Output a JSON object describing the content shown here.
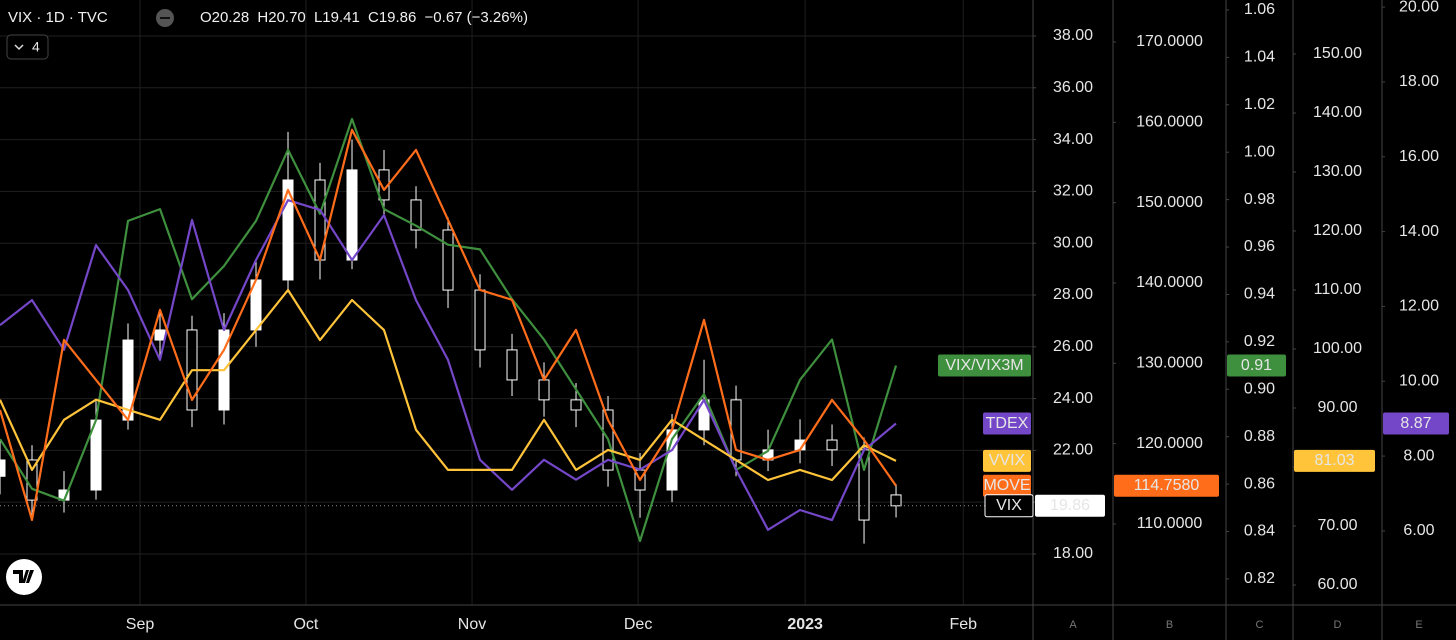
{
  "chart_data": {
    "type": "line",
    "title": "VIX · 1D · TVC",
    "ohlc": [
      "O20.28",
      "H20.70",
      "L19.41",
      "C19.86",
      "−0.67 (−3.26%)"
    ],
    "indicator_count": 4,
    "x": [
      0,
      1,
      2,
      3,
      4,
      5,
      6,
      7,
      8,
      9,
      10,
      11,
      12,
      13,
      14,
      15,
      16,
      17,
      18,
      19,
      20,
      21,
      22,
      23,
      24,
      25,
      26,
      27,
      28
    ],
    "xlim": [
      0,
      32.28
    ],
    "xticks": [
      {
        "value": 4.375,
        "label": "Sep"
      },
      {
        "value": 9.56,
        "label": "Oct"
      },
      {
        "value": 14.75,
        "label": "Nov"
      },
      {
        "value": 19.94,
        "label": "Dec"
      },
      {
        "value": 25.16,
        "label": "2023"
      },
      {
        "value": 30.1,
        "label": "Feb"
      }
    ],
    "grid": true,
    "axes": [
      {
        "id": "A",
        "lim": [
          16.03,
          39.39
        ],
        "ticks": [
          {
            "value": 18,
            "label": "18.00"
          },
          {
            "value": 20,
            "label": "20.00"
          },
          {
            "value": 22,
            "label": "22.00"
          },
          {
            "value": 24,
            "label": "24.00"
          },
          {
            "value": 26,
            "label": "26.00"
          },
          {
            "value": 28,
            "label": "28.00"
          },
          {
            "value": 30,
            "label": "30.00"
          },
          {
            "value": 32,
            "label": "32.00"
          },
          {
            "value": 34,
            "label": "34.00"
          },
          {
            "value": 36,
            "label": "36.00"
          },
          {
            "value": 38,
            "label": "38.00"
          }
        ]
      },
      {
        "id": "B",
        "lim": [
          99.91,
          175.23
        ],
        "ticks": [
          {
            "value": 110,
            "label": "110.0000"
          },
          {
            "value": 120,
            "label": "120.0000"
          },
          {
            "value": 130,
            "label": "130.0000"
          },
          {
            "value": 140,
            "label": "140.0000"
          },
          {
            "value": 150,
            "label": "150.0000"
          },
          {
            "value": 160,
            "label": "160.0000"
          },
          {
            "value": 170,
            "label": "170.0000"
          }
        ]
      },
      {
        "id": "C",
        "lim": [
          0.809,
          1.0642
        ],
        "ticks": [
          {
            "value": 0.82,
            "label": "0.82"
          },
          {
            "value": 0.84,
            "label": "0.84"
          },
          {
            "value": 0.86,
            "label": "0.86"
          },
          {
            "value": 0.88,
            "label": "0.88"
          },
          {
            "value": 0.9,
            "label": "0.90"
          },
          {
            "value": 0.92,
            "label": "0.92"
          },
          {
            "value": 0.94,
            "label": "0.94"
          },
          {
            "value": 0.96,
            "label": "0.96"
          },
          {
            "value": 0.98,
            "label": "0.98"
          },
          {
            "value": 1,
            "label": "1.00"
          },
          {
            "value": 1.02,
            "label": "1.02"
          },
          {
            "value": 1.04,
            "label": "1.04"
          },
          {
            "value": 1.06,
            "label": "1.06"
          }
        ]
      },
      {
        "id": "D",
        "lim": [
          56.61,
          159.15
        ],
        "ticks": [
          {
            "value": 60,
            "label": "60.00"
          },
          {
            "value": 70,
            "label": "70.00"
          },
          {
            "value": 80,
            "label": "80.00"
          },
          {
            "value": 90,
            "label": "90.00"
          },
          {
            "value": 100,
            "label": "100.00"
          },
          {
            "value": 110,
            "label": "110.00"
          },
          {
            "value": 120,
            "label": "120.00"
          },
          {
            "value": 130,
            "label": "130.00"
          },
          {
            "value": 140,
            "label": "140.00"
          },
          {
            "value": 150,
            "label": "150.00"
          }
        ]
      },
      {
        "id": "E",
        "lim": [
          4.02,
          20.19
        ],
        "ticks": [
          {
            "value": 6,
            "label": "6.00"
          },
          {
            "value": 8,
            "label": "8.00"
          },
          {
            "value": 10,
            "label": "10.00"
          },
          {
            "value": 12,
            "label": "12.00"
          },
          {
            "value": 14,
            "label": "14.00"
          },
          {
            "value": 16,
            "label": "16.00"
          },
          {
            "value": 18,
            "label": "18.00"
          },
          {
            "value": 20,
            "label": "20.00"
          }
        ]
      }
    ],
    "candles": {
      "name": "VIX",
      "axis": "A",
      "color": "#ffffff",
      "open": [
        21.0,
        21.63,
        20.08,
        20.47,
        23.17,
        26.26,
        26.65,
        23.56,
        26.65,
        28.58,
        32.44,
        29.35,
        32.83,
        31.67,
        30.51,
        28.19,
        25.88,
        24.72,
        23.95,
        23.56,
        21.24,
        20.47,
        22.79,
        23.95,
        21.63,
        22.02,
        22.4,
        22.02,
        20.28
      ],
      "high": [
        22.4,
        22.2,
        21.2,
        23.9,
        26.9,
        27.4,
        27.2,
        27.3,
        29.3,
        34.3,
        33.1,
        34.0,
        33.6,
        32.2,
        31.0,
        28.8,
        26.5,
        25.4,
        24.6,
        24.1,
        21.9,
        23.4,
        25.5,
        24.5,
        22.8,
        23.2,
        23.0,
        22.5,
        20.7
      ],
      "low": [
        20.3,
        19.5,
        19.6,
        20.1,
        22.8,
        25.6,
        22.9,
        23.0,
        26.0,
        28.1,
        28.6,
        29.0,
        31.0,
        29.8,
        27.5,
        25.2,
        24.1,
        23.3,
        22.9,
        20.6,
        19.4,
        20.0,
        22.2,
        21.0,
        21.2,
        21.5,
        21.4,
        18.4,
        19.41
      ],
      "close": [
        21.63,
        20.08,
        20.47,
        23.17,
        26.26,
        26.65,
        23.56,
        26.65,
        28.58,
        32.44,
        29.35,
        32.83,
        31.67,
        30.51,
        28.19,
        25.88,
        24.72,
        23.95,
        23.56,
        21.24,
        20.47,
        22.79,
        23.95,
        21.63,
        22.02,
        22.4,
        22.02,
        19.31,
        19.86
      ],
      "last_label": "19.86"
    },
    "series": [
      {
        "name": "VIX/VIX3M",
        "axis": "C",
        "color": "#3e8f3e",
        "last_label": "0.91",
        "values": [
          0.879,
          0.858,
          0.853,
          0.887,
          0.971,
          0.976,
          0.938,
          0.952,
          0.971,
          1.001,
          0.974,
          1.014,
          0.976,
          0.969,
          0.961,
          0.959,
          0.938,
          0.921,
          0.9,
          0.879,
          0.836,
          0.879,
          0.898,
          0.866,
          0.874,
          0.904,
          0.921,
          0.866,
          0.91
        ]
      },
      {
        "name": "TDEX",
        "axis": "E",
        "color": "#7447c8",
        "last_label": "8.87",
        "values": [
          11.5,
          12.17,
          10.84,
          13.64,
          12.44,
          10.57,
          14.31,
          11.37,
          13.24,
          14.84,
          14.58,
          13.24,
          14.44,
          12.17,
          10.57,
          7.9,
          7.1,
          7.9,
          7.37,
          7.9,
          7.64,
          8.16,
          9.5,
          7.64,
          6.03,
          6.56,
          6.29,
          8.16,
          8.87
        ]
      },
      {
        "name": "VVIX",
        "axis": "D",
        "color": "#ffc43a",
        "last_label": "81.03",
        "values": [
          91.4,
          79.5,
          88.0,
          91.4,
          89.7,
          88.0,
          96.4,
          96.4,
          103.2,
          110.0,
          101.5,
          108.3,
          103.2,
          86.3,
          79.5,
          79.5,
          79.5,
          88.0,
          79.5,
          82.9,
          81.2,
          88.0,
          84.6,
          81.2,
          77.8,
          79.5,
          77.8,
          83.7,
          81.03
        ]
      },
      {
        "name": "MOVE",
        "axis": "B",
        "color": "#ff6d1a",
        "last_label": "114.7580",
        "values": [
          124.2,
          110.5,
          132.91,
          127.93,
          122.95,
          136.65,
          125.44,
          131.67,
          140.39,
          151.59,
          142.88,
          159.07,
          151.59,
          156.57,
          147.86,
          139.14,
          137.9,
          127.93,
          134.16,
          122.95,
          115.48,
          121.71,
          135.4,
          119.22,
          117.97,
          119.22,
          125.44,
          120.46,
          114.758
        ]
      }
    ]
  }
}
